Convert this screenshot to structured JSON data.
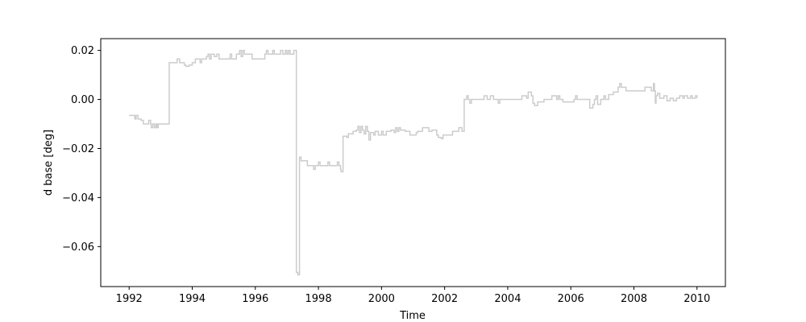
{
  "chart_data": {
    "type": "line",
    "title": "",
    "xlabel": "Time",
    "ylabel": "d base [deg]",
    "xlim": [
      1991.1,
      2010.9
    ],
    "ylim": [
      -0.0763,
      0.0248
    ],
    "grid": false,
    "legend": null,
    "x_ticks": [
      1992,
      1994,
      1996,
      1998,
      2000,
      2002,
      2004,
      2006,
      2008,
      2010
    ],
    "x_tick_labels": [
      "1992",
      "1994",
      "1996",
      "1998",
      "2000",
      "2002",
      "2004",
      "2006",
      "2008",
      "2010"
    ],
    "y_ticks": [
      0.02,
      0.0,
      -0.02,
      -0.04,
      -0.06
    ],
    "y_tick_labels": [
      "0.02",
      "0.00",
      "−0.02",
      "−0.04",
      "−0.06"
    ],
    "colors": {
      "line": "#cccccc",
      "axes": "#000000",
      "background": "#ffffff"
    },
    "series": [
      {
        "step": "post",
        "points": [
          [
            1992.0,
            -0.0065
          ],
          [
            1992.15,
            -0.0065
          ],
          [
            1992.18,
            -0.008
          ],
          [
            1992.22,
            -0.0065
          ],
          [
            1992.28,
            -0.008
          ],
          [
            1992.38,
            -0.0085
          ],
          [
            1992.45,
            -0.01
          ],
          [
            1992.6,
            -0.01
          ],
          [
            1992.62,
            -0.0085
          ],
          [
            1992.68,
            -0.01
          ],
          [
            1992.7,
            -0.0115
          ],
          [
            1992.75,
            -0.01
          ],
          [
            1992.8,
            -0.0115
          ],
          [
            1992.85,
            -0.01
          ],
          [
            1992.88,
            -0.0115
          ],
          [
            1992.92,
            -0.01
          ],
          [
            1993.0,
            -0.01
          ],
          [
            1993.27,
            0.015
          ],
          [
            1993.5,
            0.015
          ],
          [
            1993.52,
            0.0165
          ],
          [
            1993.6,
            0.015
          ],
          [
            1993.75,
            0.014
          ],
          [
            1993.8,
            0.0135
          ],
          [
            1993.9,
            0.014
          ],
          [
            1994.0,
            0.015
          ],
          [
            1994.1,
            0.0165
          ],
          [
            1994.2,
            0.0165
          ],
          [
            1994.25,
            0.015
          ],
          [
            1994.3,
            0.0165
          ],
          [
            1994.45,
            0.0175
          ],
          [
            1994.5,
            0.0185
          ],
          [
            1994.55,
            0.0165
          ],
          [
            1994.6,
            0.0185
          ],
          [
            1994.7,
            0.0175
          ],
          [
            1994.78,
            0.0185
          ],
          [
            1994.85,
            0.0165
          ],
          [
            1995.1,
            0.0165
          ],
          [
            1995.2,
            0.0185
          ],
          [
            1995.25,
            0.0165
          ],
          [
            1995.35,
            0.0165
          ],
          [
            1995.4,
            0.0185
          ],
          [
            1995.5,
            0.02
          ],
          [
            1995.55,
            0.0175
          ],
          [
            1995.6,
            0.02
          ],
          [
            1995.65,
            0.0185
          ],
          [
            1995.85,
            0.0185
          ],
          [
            1995.9,
            0.0165
          ],
          [
            1996.25,
            0.0165
          ],
          [
            1996.3,
            0.0185
          ],
          [
            1996.35,
            0.02
          ],
          [
            1996.4,
            0.0185
          ],
          [
            1996.55,
            0.02
          ],
          [
            1996.6,
            0.0185
          ],
          [
            1996.75,
            0.0185
          ],
          [
            1996.8,
            0.02
          ],
          [
            1996.87,
            0.0185
          ],
          [
            1996.95,
            0.02
          ],
          [
            1997.0,
            0.0185
          ],
          [
            1997.05,
            0.02
          ],
          [
            1997.1,
            0.0185
          ],
          [
            1997.18,
            0.0185
          ],
          [
            1997.22,
            0.02
          ],
          [
            1997.3,
            -0.0705
          ],
          [
            1997.35,
            -0.0715
          ],
          [
            1997.4,
            -0.0235
          ],
          [
            1997.45,
            -0.025
          ],
          [
            1997.6,
            -0.025
          ],
          [
            1997.65,
            -0.027
          ],
          [
            1997.8,
            -0.027
          ],
          [
            1997.85,
            -0.0285
          ],
          [
            1997.9,
            -0.027
          ],
          [
            1998.0,
            -0.0255
          ],
          [
            1998.05,
            -0.027
          ],
          [
            1998.3,
            -0.0255
          ],
          [
            1998.35,
            -0.027
          ],
          [
            1998.55,
            -0.027
          ],
          [
            1998.6,
            -0.0255
          ],
          [
            1998.65,
            -0.027
          ],
          [
            1998.7,
            -0.0285
          ],
          [
            1998.72,
            -0.0295
          ],
          [
            1998.78,
            -0.015
          ],
          [
            1998.9,
            -0.0155
          ],
          [
            1998.95,
            -0.014
          ],
          [
            1999.05,
            -0.014
          ],
          [
            1999.1,
            -0.013
          ],
          [
            1999.2,
            -0.0125
          ],
          [
            1999.25,
            -0.011
          ],
          [
            1999.3,
            -0.0135
          ],
          [
            1999.35,
            -0.011
          ],
          [
            1999.4,
            -0.0125
          ],
          [
            1999.45,
            -0.014
          ],
          [
            1999.5,
            -0.011
          ],
          [
            1999.55,
            -0.013
          ],
          [
            1999.6,
            -0.0165
          ],
          [
            1999.65,
            -0.0135
          ],
          [
            1999.75,
            -0.0145
          ],
          [
            1999.8,
            -0.013
          ],
          [
            1999.9,
            -0.0145
          ],
          [
            2000.0,
            -0.013
          ],
          [
            2000.05,
            -0.0145
          ],
          [
            2000.15,
            -0.013
          ],
          [
            2000.3,
            -0.0125
          ],
          [
            2000.4,
            -0.0135
          ],
          [
            2000.45,
            -0.0115
          ],
          [
            2000.5,
            -0.013
          ],
          [
            2000.55,
            -0.0115
          ],
          [
            2000.6,
            -0.0125
          ],
          [
            2000.75,
            -0.013
          ],
          [
            2000.9,
            -0.0145
          ],
          [
            2001.1,
            -0.0135
          ],
          [
            2001.15,
            -0.013
          ],
          [
            2001.3,
            -0.0115
          ],
          [
            2001.45,
            -0.0115
          ],
          [
            2001.5,
            -0.013
          ],
          [
            2001.6,
            -0.0125
          ],
          [
            2001.75,
            -0.0145
          ],
          [
            2001.8,
            -0.0155
          ],
          [
            2001.9,
            -0.016
          ],
          [
            2001.95,
            -0.0145
          ],
          [
            2002.05,
            -0.0145
          ],
          [
            2002.15,
            -0.0145
          ],
          [
            2002.25,
            -0.013
          ],
          [
            2002.45,
            -0.0115
          ],
          [
            2002.55,
            -0.013
          ],
          [
            2002.62,
            0.0
          ],
          [
            2002.7,
            0.0015
          ],
          [
            2002.75,
            0.0
          ],
          [
            2002.8,
            -0.0015
          ],
          [
            2002.85,
            0.0
          ],
          [
            2003.2,
            0.0
          ],
          [
            2003.25,
            0.0015
          ],
          [
            2003.35,
            0.0
          ],
          [
            2003.45,
            0.0015
          ],
          [
            2003.55,
            0.0
          ],
          [
            2003.7,
            -0.0015
          ],
          [
            2003.75,
            0.0
          ],
          [
            2004.2,
            0.0
          ],
          [
            2004.45,
            0.0015
          ],
          [
            2004.6,
            0.0005
          ],
          [
            2004.65,
            0.003
          ],
          [
            2004.75,
            0.0015
          ],
          [
            2004.8,
            -0.0015
          ],
          [
            2004.85,
            -0.0025
          ],
          [
            2004.95,
            -0.001
          ],
          [
            2005.05,
            -0.001
          ],
          [
            2005.15,
            0.0
          ],
          [
            2005.4,
            0.0015
          ],
          [
            2005.55,
            0.0
          ],
          [
            2005.6,
            0.0015
          ],
          [
            2005.65,
            0.0
          ],
          [
            2005.75,
            -0.001
          ],
          [
            2005.95,
            -0.001
          ],
          [
            2006.1,
            0.0
          ],
          [
            2006.15,
            0.0015
          ],
          [
            2006.2,
            0.0
          ],
          [
            2006.5,
            0.0
          ],
          [
            2006.6,
            -0.0035
          ],
          [
            2006.7,
            -0.002
          ],
          [
            2006.75,
            0.0
          ],
          [
            2006.8,
            0.0015
          ],
          [
            2006.85,
            -0.002
          ],
          [
            2006.95,
            0.0
          ],
          [
            2007.05,
            0.0015
          ],
          [
            2007.1,
            0.0
          ],
          [
            2007.2,
            0.002
          ],
          [
            2007.35,
            0.003
          ],
          [
            2007.5,
            0.005
          ],
          [
            2007.55,
            0.0065
          ],
          [
            2007.6,
            0.005
          ],
          [
            2007.75,
            0.0035
          ],
          [
            2008.3,
            0.0035
          ],
          [
            2008.35,
            0.005
          ],
          [
            2008.45,
            0.005
          ],
          [
            2008.55,
            0.0035
          ],
          [
            2008.62,
            0.0065
          ],
          [
            2008.65,
            0.0035
          ],
          [
            2008.68,
            -0.0015
          ],
          [
            2008.7,
            0.0015
          ],
          [
            2008.75,
            0.0025
          ],
          [
            2008.82,
            0.0005
          ],
          [
            2008.95,
            0.0015
          ],
          [
            2009.05,
            -0.0005
          ],
          [
            2009.15,
            0.0005
          ],
          [
            2009.25,
            -0.0005
          ],
          [
            2009.35,
            0.0005
          ],
          [
            2009.45,
            0.0015
          ],
          [
            2009.55,
            0.0005
          ],
          [
            2009.6,
            0.0015
          ],
          [
            2009.7,
            0.0005
          ],
          [
            2009.8,
            0.0015
          ],
          [
            2009.85,
            0.0005
          ],
          [
            2009.95,
            0.0015
          ],
          [
            2010.0,
            0.0005
          ]
        ]
      }
    ]
  }
}
